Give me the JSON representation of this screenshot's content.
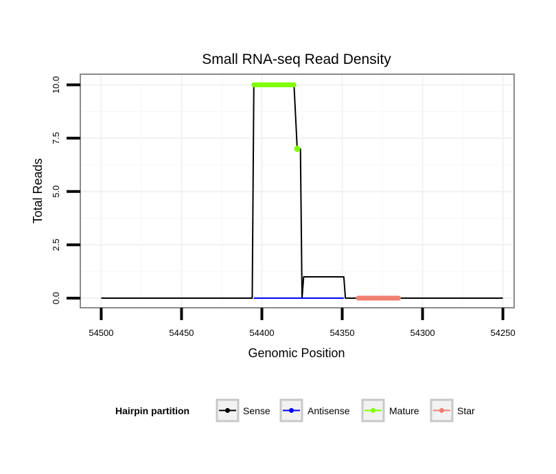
{
  "chart_data": {
    "type": "line",
    "title": "Small RNA-seq Read Density",
    "xlabel": "Genomic Position",
    "ylabel": "Total Reads",
    "xlim": [
      54513,
      54243
    ],
    "ylim": [
      -0.45,
      10.5
    ],
    "x_reversed": true,
    "x_ticks": [
      54500,
      54450,
      54400,
      54350,
      54300,
      54250
    ],
    "x_tick_labels": [
      "54500",
      "54450",
      "54400",
      "54350",
      "54300",
      "54250"
    ],
    "y_ticks": [
      0,
      2.5,
      5,
      7.5,
      10
    ],
    "y_tick_labels": [
      "0.0",
      "2.5",
      "5.0",
      "7.5",
      "10.0"
    ],
    "grid": true,
    "legend": {
      "title": "Hairpin partition",
      "position": "bottom",
      "entries": [
        "Sense",
        "Antisense",
        "Mature",
        "Star"
      ]
    },
    "series": [
      {
        "name": "Sense",
        "color": "#000000",
        "style": "line",
        "x": [
          54500,
          54406,
          54405,
          54380,
          54378,
          54376,
          54375,
          54374,
          54349,
          54348,
          54250
        ],
        "y": [
          0,
          0,
          10,
          10,
          7,
          7,
          0,
          1,
          1,
          0,
          0
        ]
      },
      {
        "name": "Antisense",
        "color": "#0000ff",
        "style": "line",
        "x": [
          54405,
          54349
        ],
        "y": [
          0,
          0
        ]
      },
      {
        "name": "Mature",
        "color": "#7fff00",
        "style": "thick",
        "x": [
          54405,
          54380
        ],
        "y": [
          10,
          10
        ],
        "points_x": [
          54378
        ],
        "points_y": [
          7
        ]
      },
      {
        "name": "Star",
        "color": "#f08070",
        "style": "thick",
        "x": [
          54340,
          54315
        ],
        "y": [
          0,
          0
        ]
      }
    ]
  }
}
